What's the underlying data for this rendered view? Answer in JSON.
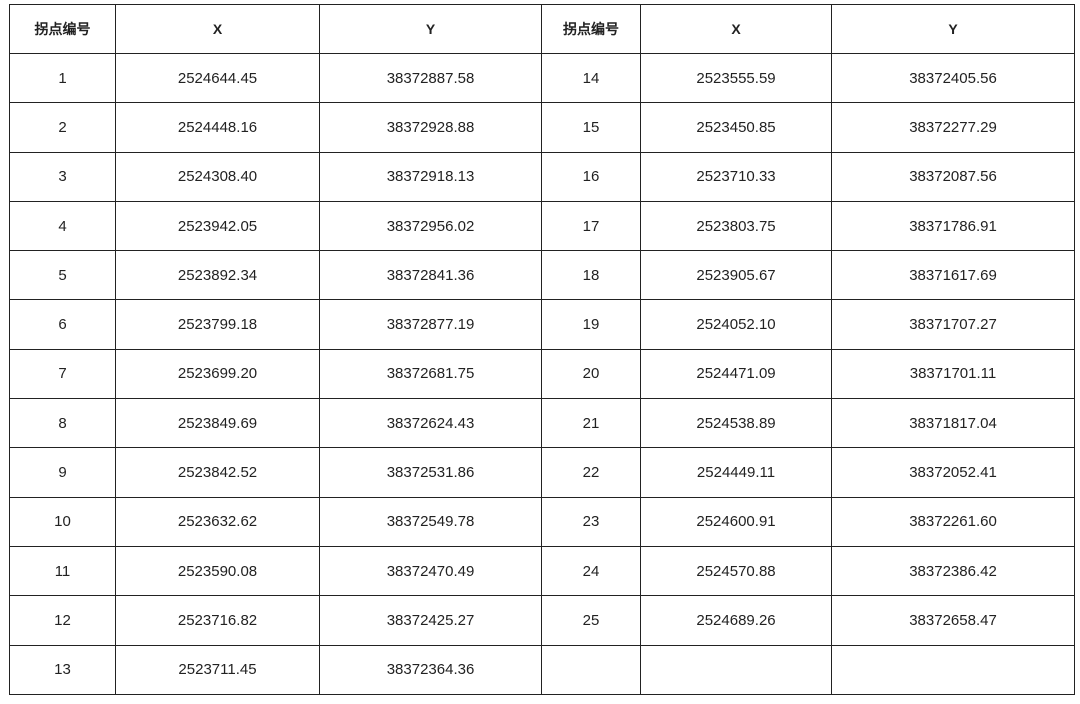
{
  "table": {
    "headers": [
      "拐点编号",
      "X",
      "Y",
      "拐点编号",
      "X",
      "Y"
    ],
    "points": [
      {
        "id": "1",
        "x": "2524644.45",
        "y": "38372887.58"
      },
      {
        "id": "2",
        "x": "2524448.16",
        "y": "38372928.88"
      },
      {
        "id": "3",
        "x": "2524308.40",
        "y": "38372918.13"
      },
      {
        "id": "4",
        "x": "2523942.05",
        "y": "38372956.02"
      },
      {
        "id": "5",
        "x": "2523892.34",
        "y": "38372841.36"
      },
      {
        "id": "6",
        "x": "2523799.18",
        "y": "38372877.19"
      },
      {
        "id": "7",
        "x": "2523699.20",
        "y": "38372681.75"
      },
      {
        "id": "8",
        "x": "2523849.69",
        "y": "38372624.43"
      },
      {
        "id": "9",
        "x": "2523842.52",
        "y": "38372531.86"
      },
      {
        "id": "10",
        "x": "2523632.62",
        "y": "38372549.78"
      },
      {
        "id": "11",
        "x": "2523590.08",
        "y": "38372470.49"
      },
      {
        "id": "12",
        "x": "2523716.82",
        "y": "38372425.27"
      },
      {
        "id": "13",
        "x": "2523711.45",
        "y": "38372364.36"
      },
      {
        "id": "14",
        "x": "2523555.59",
        "y": "38372405.56"
      },
      {
        "id": "15",
        "x": "2523450.85",
        "y": "38372277.29"
      },
      {
        "id": "16",
        "x": "2523710.33",
        "y": "38372087.56"
      },
      {
        "id": "17",
        "x": "2523803.75",
        "y": "38371786.91"
      },
      {
        "id": "18",
        "x": "2523905.67",
        "y": "38371617.69"
      },
      {
        "id": "19",
        "x": "2524052.10",
        "y": "38371707.27"
      },
      {
        "id": "20",
        "x": "2524471.09",
        "y": "38371701.11"
      },
      {
        "id": "21",
        "x": "2524538.89",
        "y": "38371817.04"
      },
      {
        "id": "22",
        "x": "2524449.11",
        "y": "38372052.41"
      },
      {
        "id": "23",
        "x": "2524600.91",
        "y": "38372261.60"
      },
      {
        "id": "24",
        "x": "2524570.88",
        "y": "38372386.42"
      },
      {
        "id": "25",
        "x": "2524689.26",
        "y": "38372658.47"
      }
    ]
  }
}
